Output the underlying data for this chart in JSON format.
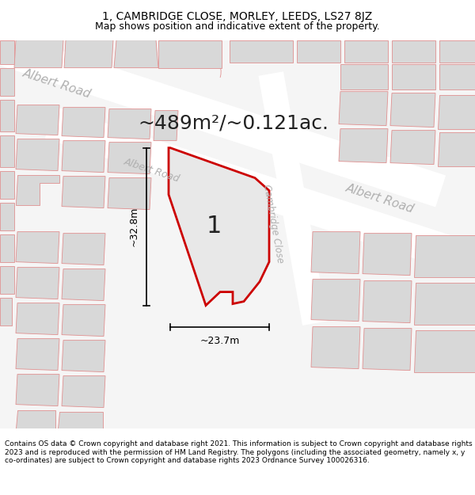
{
  "title": "1, CAMBRIDGE CLOSE, MORLEY, LEEDS, LS27 8JZ",
  "subtitle": "Map shows position and indicative extent of the property.",
  "area_label": "~489m²/~0.121ac.",
  "plot_number": "1",
  "dim_width": "~23.7m",
  "dim_height": "~32.8m",
  "road_label_ul": "Albert Road",
  "road_label_mid": "Albert Road",
  "road_label_r": "Albert Road",
  "close_label": "Cambridge Close",
  "footer": "Contains OS data © Crown copyright and database right 2021. This information is subject to Crown copyright and database rights 2023 and is reproduced with the permission of HM Land Registry. The polygons (including the associated geometry, namely x, y co-ordinates) are subject to Crown copyright and database rights 2023 Ordnance Survey 100026316.",
  "map_bg": "#f5f5f5",
  "bld_fill": "#d8d8d8",
  "bld_edge": "#e09090",
  "road_fill": "#ffffff",
  "plot_fill": "#e8e8e8",
  "plot_edge": "#cc0000",
  "road_label_color": "#b0b0b0",
  "title_fontsize": 10,
  "subtitle_fontsize": 9,
  "area_fontsize": 18,
  "dim_fontsize": 9,
  "footer_fontsize": 6.5,
  "road_label_fontsize": 11
}
